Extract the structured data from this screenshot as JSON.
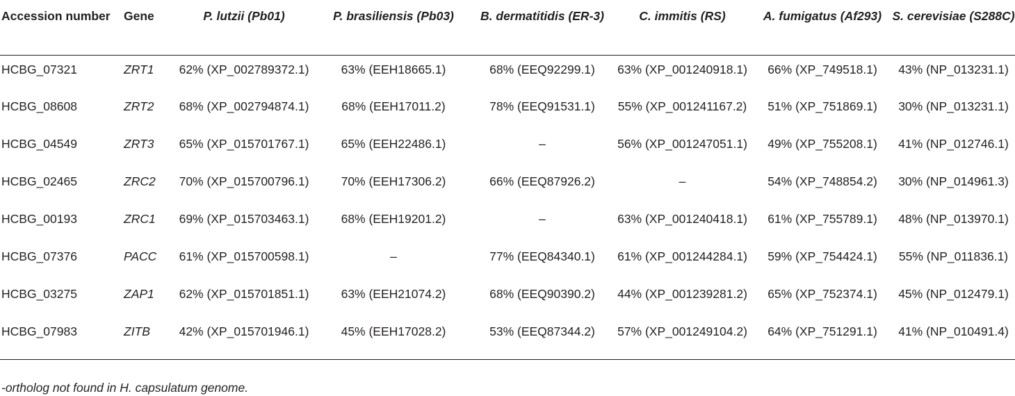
{
  "table": {
    "headers": {
      "accession": "Accession number",
      "gene": "Gene",
      "species": [
        "P. lutzii (Pb01)",
        "P. brasiliensis (Pb03)",
        "B. dermatitidis (ER-3)",
        "C. immitis (RS)",
        "A. fumigatus (Af293)",
        "S. cerevisiae (S288C)"
      ]
    },
    "rows": [
      {
        "accession": "HCBG_07321",
        "gene": "ZRT1",
        "values": [
          "62% (XP_002789372.1)",
          "63% (EEH18665.1)",
          "68% (EEQ92299.1)",
          "63% (XP_001240918.1)",
          "66% (XP_749518.1)",
          "43% (NP_013231.1)"
        ]
      },
      {
        "accession": "HCBG_08608",
        "gene": "ZRT2",
        "values": [
          "68% (XP_002794874.1)",
          "68% (EEH17011.2)",
          "78% (EEQ91531.1)",
          "55% (XP_001241167.2)",
          "51% (XP_751869.1)",
          "30% (NP_013231.1)"
        ]
      },
      {
        "accession": "HCBG_04549",
        "gene": "ZRT3",
        "values": [
          "65% (XP_015701767.1)",
          "65% (EEH22486.1)",
          "–",
          "56% (XP_001247051.1)",
          "49% (XP_755208.1)",
          "41% (NP_012746.1)"
        ]
      },
      {
        "accession": "HCBG_02465",
        "gene": "ZRC2",
        "values": [
          "70% (XP_015700796.1)",
          "70% (EEH17306.2)",
          "66% (EEQ87926.2)",
          "–",
          "54% (XP_748854.2)",
          "30% (NP_014961.3)"
        ]
      },
      {
        "accession": "HCBG_00193",
        "gene": "ZRC1",
        "values": [
          "69% (XP_015703463.1)",
          "68% (EEH19201.2)",
          "–",
          "63% (XP_001240418.1)",
          "61% (XP_755789.1)",
          "48% (NP_013970.1)"
        ]
      },
      {
        "accession": "HCBG_07376",
        "gene": "PACC",
        "values": [
          "61% (XP_015700598.1)",
          "–",
          "77% (EEQ84340.1)",
          "61% (XP_001244284.1)",
          "59% (XP_754424.1)",
          "55% (NP_011836.1)"
        ]
      },
      {
        "accession": "HCBG_03275",
        "gene": "ZAP1",
        "values": [
          "62% (XP_015701851.1)",
          "63% (EEH21074.2)",
          "68% (EEQ90390.2)",
          "44% (XP_001239281.2)",
          "65% (XP_752374.1)",
          "45% (NP_012479.1)"
        ]
      },
      {
        "accession": "HCBG_07983",
        "gene": "ZITB",
        "values": [
          "42% (XP_015701946.1)",
          "45% (EEH17028.2)",
          "53% (EEQ87344.2)",
          "57% (XP_001249104.2)",
          "64% (XP_751291.1)",
          "41% (NP_010491.4)"
        ]
      }
    ]
  },
  "footnote": "-ortholog not found in H. capsulatum genome."
}
